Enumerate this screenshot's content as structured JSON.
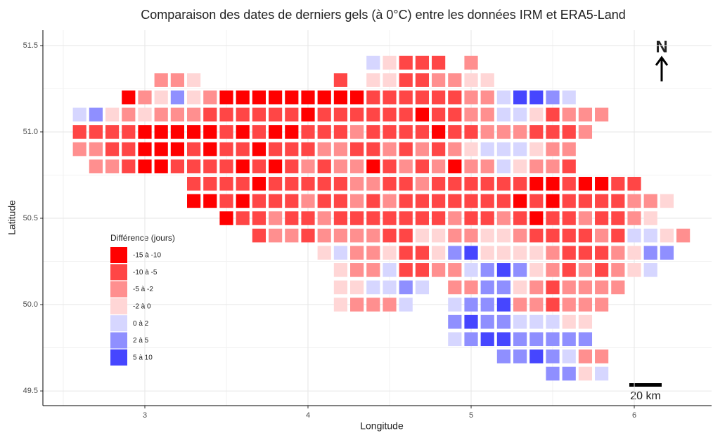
{
  "chart_data": {
    "type": "tile",
    "title": "Comparaison des dates de derniers gels (à 0°C) entre les données IRM et ERA5-Land",
    "xlabel": "Longitude",
    "ylabel": "Latitude",
    "legend_title": "Différence (jours)",
    "north_label": "N",
    "scale_label": "20 km",
    "xlim": [
      2.375,
      6.474
    ],
    "ylim": [
      49.415,
      51.589
    ],
    "xticks": [
      3,
      4,
      5,
      6
    ],
    "yticks": [
      49.5,
      {
        "value": 50,
        "label": "50.0"
      },
      50.5,
      {
        "value": 51,
        "label": "51.0"
      },
      51.5
    ],
    "grid": true,
    "series": [
      {
        "name": "-15 à -10",
        "color": "#ff0000",
        "x": [
          2.9,
          3.5,
          3.6,
          3.7,
          3.8,
          3.9,
          4.0,
          4.1,
          4.2,
          4.3,
          4.0,
          4.7,
          3.0,
          3.1,
          3.2,
          3.3,
          3.4,
          3.6,
          3.8,
          3.9,
          4.8,
          3.0,
          3.1,
          3.2,
          3.4,
          3.7,
          3.0,
          3.1,
          3.6,
          3.8,
          4.4,
          4.9,
          3.7,
          5.4,
          5.5,
          5.7,
          5.8,
          3.3,
          3.4,
          3.6,
          5.3,
          5.5,
          3.5,
          5.4
        ],
        "y": [
          51.2,
          51.2,
          51.2,
          51.2,
          51.2,
          51.2,
          51.2,
          51.2,
          51.2,
          51.2,
          51.1,
          51.1,
          51.0,
          51.0,
          51.0,
          51.0,
          51.0,
          51.0,
          51.0,
          51.0,
          51.0,
          50.9,
          50.9,
          50.9,
          50.9,
          50.9,
          50.8,
          50.8,
          50.8,
          50.8,
          50.8,
          50.8,
          50.7,
          50.7,
          50.7,
          50.7,
          50.7,
          50.6,
          50.6,
          50.6,
          50.6,
          50.6,
          50.5,
          50.5
        ]
      },
      {
        "name": "-10 à -5",
        "color": "#ff4646",
        "x": [
          4.6,
          4.7,
          4.8,
          4.2,
          4.6,
          4.7,
          4.4,
          4.5,
          4.6,
          4.7,
          4.8,
          4.9,
          3.4,
          3.5,
          3.6,
          3.7,
          3.8,
          3.9,
          4.1,
          4.2,
          4.3,
          4.4,
          4.5,
          4.6,
          4.8,
          4.9,
          5.5,
          2.6,
          2.7,
          2.8,
          2.9,
          3.5,
          3.7,
          4.0,
          4.1,
          4.2,
          4.4,
          4.5,
          4.6,
          4.7,
          4.9,
          5.0,
          5.4,
          5.5,
          5.6,
          2.8,
          2.9,
          3.3,
          3.5,
          3.6,
          3.8,
          3.9,
          4.0,
          4.3,
          4.4,
          4.6,
          4.8,
          2.9,
          3.2,
          3.3,
          3.4,
          3.5,
          3.7,
          3.9,
          4.1,
          4.5,
          4.7,
          5.6,
          3.3,
          3.4,
          3.5,
          3.6,
          3.8,
          3.9,
          4.0,
          4.1,
          4.2,
          4.5,
          4.6,
          4.8,
          4.9,
          5.0,
          5.1,
          5.2,
          5.3,
          5.6,
          5.9,
          6.0,
          3.5,
          3.7,
          3.8,
          3.9,
          4.1,
          4.2,
          4.4,
          4.6,
          4.7,
          4.8,
          4.9,
          5.0,
          5.1,
          5.2,
          5.4,
          5.6,
          5.7,
          5.8,
          5.9,
          3.6,
          3.7,
          3.9,
          4.0,
          4.2,
          4.3,
          4.4,
          4.5,
          4.6,
          4.7,
          4.8,
          5.0,
          5.1,
          5.3,
          5.5,
          5.6,
          5.8,
          5.9,
          3.7,
          4.0,
          4.5,
          4.6,
          5.4,
          5.5,
          5.6,
          5.7,
          5.9,
          4.6,
          4.7,
          5.6,
          5.7,
          5.8,
          4.6,
          4.7,
          5.6,
          5.8,
          5.5,
          5.5
        ],
        "y": [
          51.4,
          51.4,
          51.4,
          51.3,
          51.3,
          51.3,
          51.2,
          51.2,
          51.2,
          51.2,
          51.2,
          51.2,
          51.1,
          51.1,
          51.1,
          51.1,
          51.1,
          51.1,
          51.1,
          51.1,
          51.1,
          51.1,
          51.1,
          51.1,
          51.1,
          51.1,
          51.1,
          51.0,
          51.0,
          51.0,
          51.0,
          51.0,
          51.0,
          51.0,
          51.0,
          51.0,
          51.0,
          51.0,
          51.0,
          51.0,
          51.0,
          51.0,
          51.0,
          51.0,
          51.0,
          50.9,
          50.9,
          50.9,
          50.9,
          50.9,
          50.9,
          50.9,
          50.9,
          50.9,
          50.9,
          50.9,
          50.9,
          50.8,
          50.8,
          50.8,
          50.8,
          50.8,
          50.8,
          50.8,
          50.8,
          50.8,
          50.8,
          50.8,
          50.7,
          50.7,
          50.7,
          50.7,
          50.7,
          50.7,
          50.7,
          50.7,
          50.7,
          50.7,
          50.7,
          50.7,
          50.7,
          50.7,
          50.7,
          50.7,
          50.7,
          50.7,
          50.7,
          50.7,
          50.6,
          50.6,
          50.6,
          50.6,
          50.6,
          50.6,
          50.6,
          50.6,
          50.6,
          50.6,
          50.6,
          50.6,
          50.6,
          50.6,
          50.6,
          50.6,
          50.6,
          50.6,
          50.6,
          50.5,
          50.5,
          50.5,
          50.5,
          50.5,
          50.5,
          50.5,
          50.5,
          50.5,
          50.5,
          50.5,
          50.5,
          50.5,
          50.5,
          50.5,
          50.5,
          50.5,
          50.5,
          50.4,
          50.4,
          50.4,
          50.4,
          50.4,
          50.4,
          50.4,
          50.4,
          50.4,
          50.3,
          50.3,
          50.3,
          50.3,
          50.3,
          50.2,
          50.2,
          50.2,
          50.2,
          50.1,
          50.0
        ]
      },
      {
        "name": "-5 à -2",
        "color": "#ff8f8f",
        "x": [
          5.0,
          3.1,
          3.2,
          4.8,
          4.9,
          3.0,
          3.4,
          5.0,
          5.1,
          2.9,
          3.1,
          3.2,
          3.3,
          5.0,
          5.1,
          5.6,
          5.7,
          5.8,
          4.3,
          5.1,
          5.2,
          5.3,
          5.7,
          2.6,
          2.7,
          4.1,
          4.2,
          4.5,
          4.7,
          4.9,
          5.5,
          5.6,
          2.7,
          2.8,
          4.0,
          4.2,
          4.3,
          4.6,
          4.8,
          5.0,
          5.1,
          5.4,
          5.5,
          4.3,
          4.4,
          4.7,
          4.0,
          4.3,
          4.5,
          6.0,
          6.1,
          3.8,
          4.1,
          4.9,
          5.2,
          5.7,
          6.0,
          3.8,
          3.9,
          4.1,
          4.2,
          4.3,
          4.4,
          4.9,
          5.0,
          5.3,
          5.8,
          6.3,
          4.3,
          4.4,
          5.5,
          5.9,
          4.3,
          4.4,
          4.8,
          4.9,
          5.5,
          5.7,
          5.9,
          4.9,
          5.0,
          5.4,
          5.6,
          5.7,
          5.8,
          5.9,
          4.3,
          4.4,
          4.5,
          5.3,
          5.4,
          5.6,
          5.7,
          5.8,
          5.7,
          5.8
        ],
        "y": [
          51.4,
          51.3,
          51.3,
          51.3,
          51.3,
          51.2,
          51.2,
          51.2,
          51.2,
          51.1,
          51.1,
          51.1,
          51.1,
          51.1,
          51.1,
          51.1,
          51.1,
          51.1,
          51.0,
          51.0,
          51.0,
          51.0,
          51.0,
          50.9,
          50.9,
          50.9,
          50.9,
          50.9,
          50.9,
          50.9,
          50.9,
          50.9,
          50.8,
          50.8,
          50.8,
          50.8,
          50.8,
          50.8,
          50.8,
          50.8,
          50.8,
          50.8,
          50.8,
          50.7,
          50.7,
          50.7,
          50.6,
          50.6,
          50.6,
          50.6,
          50.6,
          50.5,
          50.5,
          50.5,
          50.5,
          50.5,
          50.5,
          50.4,
          50.4,
          50.4,
          50.4,
          50.4,
          50.4,
          50.4,
          50.4,
          50.4,
          50.4,
          50.4,
          50.3,
          50.3,
          50.3,
          50.3,
          50.2,
          50.2,
          50.2,
          50.2,
          50.2,
          50.2,
          50.2,
          50.1,
          50.1,
          50.1,
          50.1,
          50.1,
          50.1,
          50.1,
          50.0,
          50.0,
          50.0,
          50.0,
          50.0,
          50.0,
          50.0,
          50.0,
          49.7,
          49.7
        ]
      },
      {
        "name": "-2 à 0",
        "color": "#ffd6d6",
        "x": [
          4.5,
          3.3,
          4.4,
          4.5,
          5.0,
          5.1,
          3.1,
          3.3,
          2.8,
          3.0,
          5.4,
          5.0,
          5.4,
          5.3,
          6.2,
          6.1,
          4.7,
          4.8,
          5.1,
          5.2,
          6.2,
          4.1,
          4.5,
          4.8,
          5.1,
          5.2,
          5.3,
          5.4,
          6.0,
          4.2,
          5.4,
          6.0,
          4.2,
          4.3,
          5.3,
          4.2,
          5.6,
          5.7,
          5.7
        ],
        "y": [
          51.4,
          51.3,
          51.3,
          51.3,
          51.3,
          51.3,
          51.2,
          51.2,
          51.1,
          51.1,
          51.1,
          50.9,
          50.9,
          50.8,
          50.6,
          50.5,
          50.4,
          50.4,
          50.4,
          50.4,
          50.4,
          50.3,
          50.3,
          50.3,
          50.3,
          50.3,
          50.3,
          50.3,
          50.3,
          50.2,
          50.2,
          50.2,
          50.1,
          50.1,
          50.1,
          50.0,
          49.9,
          49.9,
          49.6
        ]
      },
      {
        "name": "0 à 2",
        "color": "#d6d6ff",
        "x": [
          4.4,
          5.2,
          5.6,
          2.6,
          5.2,
          5.3,
          5.1,
          5.2,
          5.3,
          5.2,
          6.0,
          6.1,
          4.2,
          4.5,
          5.0,
          6.1,
          4.4,
          4.5,
          4.7,
          4.6,
          4.9,
          5.3,
          5.4,
          5.5,
          4.9,
          5.6,
          5.8
        ],
        "y": [
          51.4,
          51.2,
          51.2,
          51.1,
          51.1,
          51.1,
          50.9,
          50.9,
          50.9,
          50.8,
          50.4,
          50.4,
          50.3,
          50.2,
          50.2,
          50.2,
          50.1,
          50.1,
          50.1,
          50.0,
          50.0,
          49.9,
          49.9,
          49.9,
          49.8,
          49.7,
          49.6
        ]
      },
      {
        "name": "2 à 5",
        "color": "#8f8fff",
        "x": [
          3.2,
          5.5,
          2.7,
          4.9,
          6.1,
          6.2,
          5.1,
          5.3,
          4.6,
          5.1,
          5.2,
          5.0,
          5.1,
          4.9,
          5.1,
          5.2,
          5.0,
          5.3,
          5.4,
          5.5,
          5.6,
          5.7,
          5.2,
          5.3,
          5.5,
          5.5,
          5.6
        ],
        "y": [
          51.2,
          51.2,
          51.1,
          50.3,
          50.3,
          50.3,
          50.2,
          50.2,
          50.1,
          50.1,
          50.1,
          50.0,
          50.0,
          49.9,
          49.9,
          49.9,
          49.8,
          49.8,
          49.8,
          49.8,
          49.8,
          49.8,
          49.7,
          49.7,
          49.7,
          49.6,
          49.6
        ]
      },
      {
        "name": "5 à 10",
        "color": "#4646ff",
        "x": [
          5.3,
          5.4,
          5.0,
          5.2,
          5.2,
          5.0,
          5.1,
          5.2,
          5.4
        ],
        "y": [
          51.2,
          51.2,
          50.3,
          50.2,
          50.0,
          49.9,
          49.8,
          49.8,
          49.7
        ]
      }
    ]
  }
}
